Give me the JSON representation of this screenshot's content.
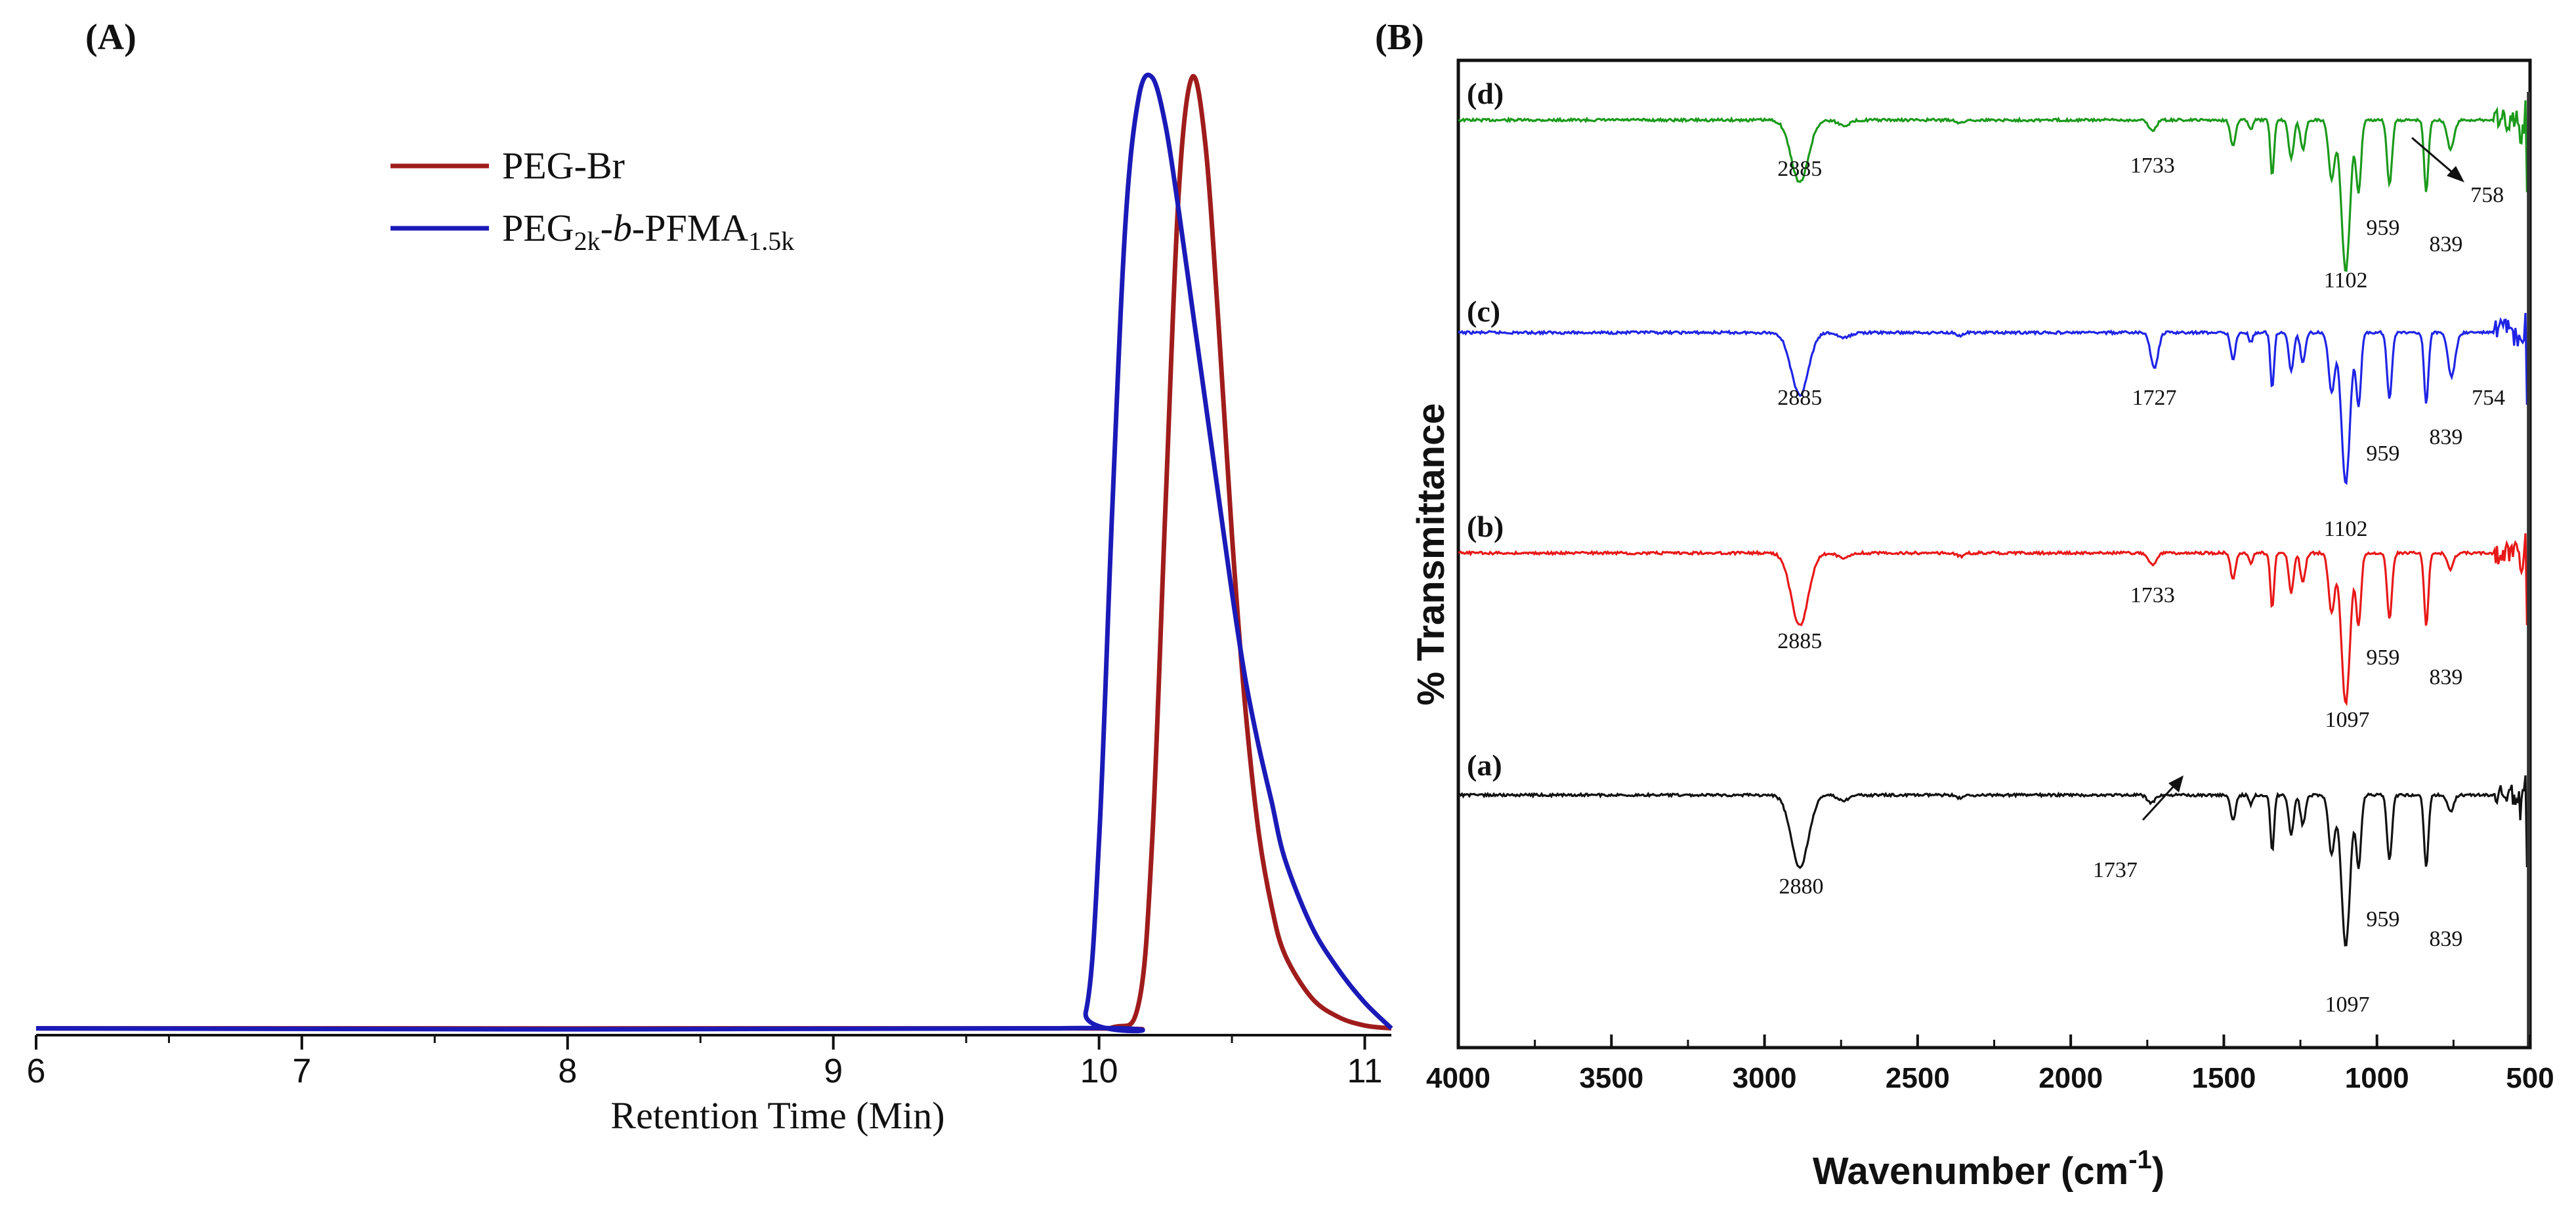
{
  "chart_data": [
    {
      "panel_label": "(A)",
      "type": "line",
      "xlabel": "Retention Time (Min)",
      "ylabel": "",
      "xlim": [
        6,
        11.1
      ],
      "ylim": [
        0,
        1
      ],
      "x_ticks": [
        "6",
        "7",
        "8",
        "9",
        "10",
        "11"
      ],
      "legend_position": "top-left",
      "series": [
        {
          "name": "PEG-Br",
          "color": "#a01c1c",
          "points": [
            [
              6.0,
              0.003
            ],
            [
              9.8,
              0.003
            ],
            [
              10.05,
              0.004
            ],
            [
              10.15,
              0.03
            ],
            [
              10.2,
              0.2
            ],
            [
              10.25,
              0.55
            ],
            [
              10.3,
              0.88
            ],
            [
              10.35,
              1.0
            ],
            [
              10.4,
              0.93
            ],
            [
              10.45,
              0.74
            ],
            [
              10.5,
              0.52
            ],
            [
              10.55,
              0.34
            ],
            [
              10.6,
              0.21
            ],
            [
              10.65,
              0.13
            ],
            [
              10.7,
              0.08
            ],
            [
              10.8,
              0.035
            ],
            [
              10.9,
              0.015
            ],
            [
              11.0,
              0.006
            ],
            [
              11.1,
              0.003
            ]
          ]
        },
        {
          "name": "PEG2k-b-PFMA1.5k",
          "color": "#1a1ab8",
          "points": [
            [
              6.0,
              0.003
            ],
            [
              9.85,
              0.003
            ],
            [
              9.95,
              0.02
            ],
            [
              10.0,
              0.2
            ],
            [
              10.05,
              0.55
            ],
            [
              10.1,
              0.85
            ],
            [
              10.15,
              0.98
            ],
            [
              10.2,
              1.0
            ],
            [
              10.25,
              0.95
            ],
            [
              10.3,
              0.86
            ],
            [
              10.35,
              0.76
            ],
            [
              10.4,
              0.66
            ],
            [
              10.45,
              0.56
            ],
            [
              10.5,
              0.46
            ],
            [
              10.55,
              0.37
            ],
            [
              10.6,
              0.3
            ],
            [
              10.65,
              0.24
            ],
            [
              10.7,
              0.18
            ],
            [
              10.8,
              0.11
            ],
            [
              10.9,
              0.065
            ],
            [
              11.0,
              0.03
            ],
            [
              11.1,
              0.003
            ]
          ]
        }
      ],
      "legend": {
        "entry_1": "PEG-Br",
        "entry_2_base": "PEG",
        "entry_2_sub1": "2k",
        "entry_2_dash1": "-",
        "entry_2_italic": "b",
        "entry_2_mid": "-PFMA",
        "entry_2_sub2": "1.5k"
      }
    },
    {
      "panel_label": "(B)",
      "type": "line",
      "xlabel_main": "Wavenumber (cm",
      "xlabel_sup": "-1",
      "xlabel_end": ")",
      "ylabel": "% Transmittance",
      "xlim": [
        4000,
        500
      ],
      "x_ticks": [
        "4000",
        "3500",
        "3000",
        "2500",
        "2000",
        "1500",
        "1000",
        "500"
      ],
      "series": [
        {
          "name": "(d)",
          "color": "#1b9a1b",
          "peaks": [
            {
              "wavenumber": 2885,
              "label": "2885"
            },
            {
              "wavenumber": 1733,
              "label": "1733"
            },
            {
              "wavenumber": 1102,
              "label": "1102"
            },
            {
              "wavenumber": 959,
              "label": "959"
            },
            {
              "wavenumber": 839,
              "label": "839"
            },
            {
              "wavenumber": 758,
              "label": "758"
            }
          ]
        },
        {
          "name": "(c)",
          "color": "#1f24e6",
          "peaks": [
            {
              "wavenumber": 2885,
              "label": "2885"
            },
            {
              "wavenumber": 1727,
              "label": "1727"
            },
            {
              "wavenumber": 1102,
              "label": "1102"
            },
            {
              "wavenumber": 959,
              "label": "959"
            },
            {
              "wavenumber": 839,
              "label": "839"
            },
            {
              "wavenumber": 754,
              "label": "754"
            }
          ]
        },
        {
          "name": "(b)",
          "color": "#e81818",
          "peaks": [
            {
              "wavenumber": 2885,
              "label": "2885"
            },
            {
              "wavenumber": 1733,
              "label": "1733"
            },
            {
              "wavenumber": 1097,
              "label": "1097"
            },
            {
              "wavenumber": 959,
              "label": "959"
            },
            {
              "wavenumber": 839,
              "label": "839"
            }
          ]
        },
        {
          "name": "(a)",
          "color": "#111111",
          "peaks": [
            {
              "wavenumber": 2880,
              "label": "2880"
            },
            {
              "wavenumber": 1737,
              "label": "1737"
            },
            {
              "wavenumber": 1097,
              "label": "1097"
            },
            {
              "wavenumber": 959,
              "label": "959"
            },
            {
              "wavenumber": 839,
              "label": "839"
            }
          ]
        }
      ]
    }
  ]
}
